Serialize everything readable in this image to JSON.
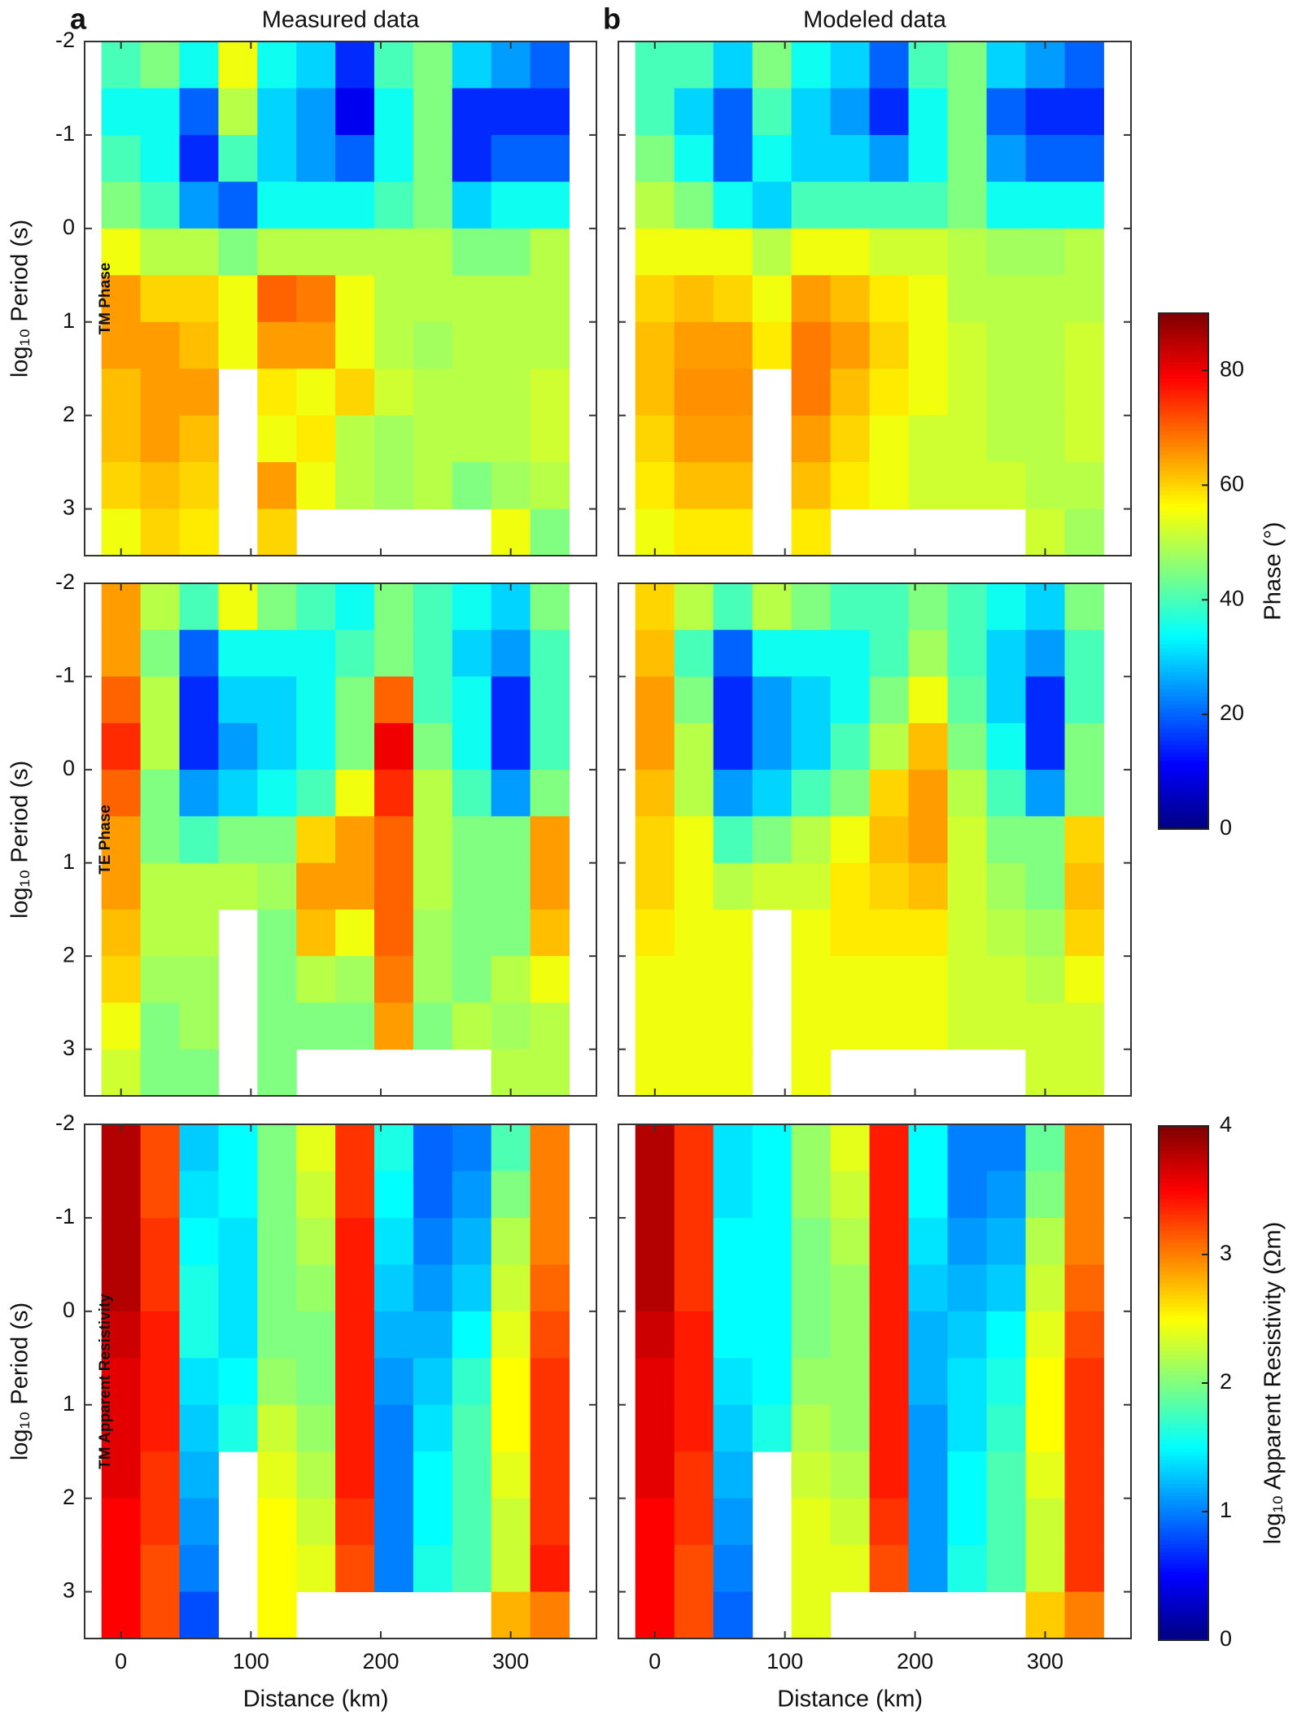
{
  "chart_data": [
    {
      "type": "heatmap",
      "panel_label": "a",
      "title": "Measured data",
      "row_label": "TM Phase",
      "ylabel": "log₁₀ Period (s)",
      "x": [
        0,
        30,
        60,
        90,
        120,
        150,
        180,
        210,
        240,
        270,
        300,
        330
      ],
      "y": [
        -1.75,
        -1.25,
        -0.75,
        -0.25,
        0.25,
        0.75,
        1.25,
        1.75,
        2.25,
        2.75,
        3.25
      ],
      "z": [
        [
          40,
          45,
          35,
          55,
          35,
          30,
          15,
          40,
          45,
          30,
          25,
          20
        ],
        [
          35,
          35,
          20,
          50,
          30,
          25,
          10,
          35,
          45,
          15,
          15,
          15
        ],
        [
          40,
          35,
          15,
          40,
          30,
          25,
          20,
          35,
          45,
          15,
          20,
          20
        ],
        [
          45,
          40,
          25,
          20,
          35,
          35,
          35,
          40,
          45,
          30,
          35,
          35
        ],
        [
          55,
          50,
          50,
          45,
          50,
          50,
          50,
          50,
          50,
          45,
          45,
          50
        ],
        [
          65,
          60,
          60,
          55,
          70,
          68,
          55,
          50,
          50,
          50,
          50,
          50
        ],
        [
          65,
          65,
          62,
          55,
          65,
          65,
          55,
          50,
          48,
          50,
          50,
          50
        ],
        [
          62,
          65,
          65,
          null,
          58,
          55,
          60,
          52,
          50,
          50,
          50,
          52
        ],
        [
          62,
          65,
          62,
          null,
          55,
          58,
          50,
          48,
          50,
          50,
          50,
          52
        ],
        [
          60,
          62,
          60,
          null,
          65,
          55,
          50,
          48,
          50,
          45,
          48,
          50
        ],
        [
          55,
          60,
          58,
          null,
          60,
          null,
          null,
          null,
          null,
          null,
          55,
          45
        ]
      ],
      "xlim": [
        -28,
        366
      ],
      "ylim": [
        -2,
        3.5
      ],
      "xticks": [
        0,
        100,
        200,
        300
      ],
      "yticks": [
        -2,
        -1,
        0,
        1,
        2,
        3
      ]
    },
    {
      "type": "heatmap",
      "panel_label": "b",
      "title": "Modeled data",
      "x": [
        0,
        30,
        60,
        90,
        120,
        150,
        180,
        210,
        240,
        270,
        300,
        330
      ],
      "y": [
        -1.75,
        -1.25,
        -0.75,
        -0.25,
        0.25,
        0.75,
        1.25,
        1.75,
        2.25,
        2.75,
        3.25
      ],
      "z": [
        [
          40,
          40,
          30,
          45,
          35,
          30,
          20,
          40,
          45,
          30,
          25,
          20
        ],
        [
          40,
          30,
          20,
          40,
          30,
          25,
          15,
          35,
          45,
          20,
          15,
          15
        ],
        [
          45,
          35,
          20,
          35,
          30,
          30,
          25,
          35,
          45,
          25,
          20,
          20
        ],
        [
          50,
          45,
          35,
          30,
          40,
          40,
          40,
          40,
          45,
          35,
          35,
          35
        ],
        [
          55,
          55,
          55,
          50,
          55,
          55,
          52,
          52,
          50,
          48,
          48,
          50
        ],
        [
          60,
          62,
          60,
          55,
          65,
          62,
          58,
          55,
          50,
          50,
          50,
          50
        ],
        [
          62,
          65,
          65,
          58,
          68,
          65,
          60,
          55,
          52,
          50,
          50,
          52
        ],
        [
          62,
          66,
          66,
          null,
          68,
          62,
          58,
          55,
          52,
          50,
          50,
          52
        ],
        [
          60,
          65,
          65,
          null,
          65,
          60,
          55,
          52,
          52,
          50,
          50,
          52
        ],
        [
          58,
          62,
          62,
          null,
          62,
          58,
          55,
          52,
          52,
          52,
          50,
          50
        ],
        [
          55,
          58,
          58,
          null,
          58,
          null,
          null,
          null,
          null,
          null,
          52,
          48
        ]
      ],
      "xlim": [
        -28,
        366
      ],
      "ylim": [
        -2,
        3.5
      ],
      "xticks": [
        0,
        100,
        200,
        300
      ],
      "yticks": [
        -2,
        -1,
        0,
        1,
        2,
        3
      ]
    },
    {
      "type": "heatmap",
      "row_label": "TE Phase",
      "ylabel": "log₁₀ Period (s)",
      "x": [
        0,
        30,
        60,
        90,
        120,
        150,
        180,
        210,
        240,
        270,
        300,
        330
      ],
      "y": [
        -1.75,
        -1.25,
        -0.75,
        -0.25,
        0.25,
        0.75,
        1.25,
        1.75,
        2.25,
        2.75,
        3.25
      ],
      "z": [
        [
          65,
          50,
          40,
          55,
          45,
          40,
          35,
          45,
          40,
          35,
          30,
          45
        ],
        [
          65,
          45,
          20,
          35,
          35,
          35,
          40,
          45,
          40,
          30,
          25,
          40
        ],
        [
          70,
          50,
          15,
          30,
          30,
          35,
          45,
          70,
          40,
          35,
          15,
          40
        ],
        [
          75,
          50,
          15,
          25,
          30,
          35,
          45,
          80,
          45,
          35,
          15,
          40
        ],
        [
          70,
          45,
          25,
          30,
          35,
          40,
          55,
          75,
          50,
          40,
          25,
          45
        ],
        [
          65,
          45,
          40,
          45,
          45,
          60,
          65,
          70,
          50,
          45,
          45,
          65
        ],
        [
          65,
          50,
          50,
          50,
          48,
          65,
          65,
          70,
          50,
          45,
          45,
          65
        ],
        [
          62,
          50,
          50,
          null,
          45,
          62,
          55,
          70,
          48,
          45,
          45,
          62
        ],
        [
          60,
          48,
          48,
          null,
          45,
          50,
          48,
          68,
          48,
          45,
          50,
          55
        ],
        [
          55,
          45,
          48,
          null,
          45,
          45,
          45,
          65,
          45,
          50,
          48,
          50
        ],
        [
          52,
          45,
          45,
          null,
          45,
          null,
          null,
          null,
          null,
          null,
          50,
          50
        ]
      ],
      "xlim": [
        -28,
        366
      ],
      "ylim": [
        -2,
        3.5
      ],
      "xticks": [
        0,
        100,
        200,
        300
      ],
      "yticks": [
        -2,
        -1,
        0,
        1,
        2,
        3
      ]
    },
    {
      "type": "heatmap",
      "x": [
        0,
        30,
        60,
        90,
        120,
        150,
        180,
        210,
        240,
        270,
        300,
        330
      ],
      "y": [
        -1.75,
        -1.25,
        -0.75,
        -0.25,
        0.25,
        0.75,
        1.25,
        1.75,
        2.25,
        2.75,
        3.25
      ],
      "z": [
        [
          60,
          50,
          40,
          50,
          45,
          40,
          40,
          45,
          40,
          35,
          30,
          45
        ],
        [
          62,
          40,
          20,
          35,
          35,
          35,
          40,
          48,
          40,
          30,
          25,
          40
        ],
        [
          65,
          45,
          15,
          25,
          30,
          35,
          45,
          55,
          42,
          30,
          15,
          40
        ],
        [
          65,
          50,
          15,
          25,
          30,
          40,
          50,
          62,
          45,
          35,
          15,
          45
        ],
        [
          62,
          50,
          25,
          30,
          40,
          45,
          60,
          65,
          50,
          40,
          25,
          45
        ],
        [
          60,
          55,
          40,
          45,
          50,
          55,
          62,
          65,
          52,
          45,
          45,
          60
        ],
        [
          60,
          55,
          50,
          52,
          52,
          58,
          60,
          62,
          52,
          48,
          45,
          62
        ],
        [
          58,
          55,
          55,
          null,
          55,
          58,
          58,
          58,
          52,
          50,
          48,
          60
        ],
        [
          55,
          55,
          55,
          null,
          55,
          55,
          55,
          55,
          52,
          52,
          50,
          55
        ],
        [
          55,
          55,
          55,
          null,
          55,
          55,
          55,
          55,
          52,
          52,
          52,
          52
        ],
        [
          55,
          55,
          55,
          null,
          55,
          null,
          null,
          null,
          null,
          null,
          52,
          52
        ]
      ],
      "xlim": [
        -28,
        366
      ],
      "ylim": [
        -2,
        3.5
      ],
      "xticks": [
        0,
        100,
        200,
        300
      ],
      "yticks": [
        -2,
        -1,
        0,
        1,
        2,
        3
      ]
    },
    {
      "type": "heatmap",
      "row_label": "TM Apparent Resistivity",
      "ylabel": "log₁₀ Period (s)",
      "xlabel": "Distance (km)",
      "x": [
        0,
        30,
        60,
        90,
        120,
        150,
        180,
        210,
        240,
        270,
        300,
        330
      ],
      "y": [
        -1.75,
        -1.25,
        -0.75,
        -0.25,
        0.25,
        0.75,
        1.25,
        1.75,
        2.25,
        2.75,
        3.25
      ],
      "z": [
        [
          3.8,
          3.2,
          1.3,
          1.5,
          2.0,
          2.4,
          3.3,
          1.6,
          0.9,
          1.0,
          1.8,
          3.0
        ],
        [
          3.8,
          3.2,
          1.4,
          1.5,
          2.0,
          2.3,
          3.3,
          1.5,
          0.9,
          1.1,
          2.0,
          3.0
        ],
        [
          3.8,
          3.3,
          1.5,
          1.4,
          2.0,
          2.2,
          3.4,
          1.4,
          1.0,
          1.2,
          2.2,
          3.0
        ],
        [
          3.8,
          3.3,
          1.6,
          1.4,
          2.0,
          2.1,
          3.4,
          1.3,
          1.1,
          1.3,
          2.3,
          3.1
        ],
        [
          3.7,
          3.4,
          1.6,
          1.4,
          2.0,
          2.0,
          3.4,
          1.2,
          1.2,
          1.5,
          2.4,
          3.2
        ],
        [
          3.6,
          3.4,
          1.4,
          1.5,
          2.1,
          2.0,
          3.4,
          1.1,
          1.3,
          1.7,
          2.5,
          3.3
        ],
        [
          3.6,
          3.4,
          1.3,
          1.6,
          2.3,
          2.1,
          3.4,
          1.0,
          1.4,
          1.8,
          2.5,
          3.3
        ],
        [
          3.6,
          3.3,
          1.2,
          null,
          2.4,
          2.2,
          3.4,
          1.0,
          1.5,
          1.8,
          2.4,
          3.3
        ],
        [
          3.5,
          3.3,
          1.1,
          null,
          2.5,
          2.3,
          3.3,
          1.0,
          1.5,
          1.8,
          2.3,
          3.3
        ],
        [
          3.5,
          3.2,
          1.0,
          null,
          2.5,
          2.4,
          3.2,
          1.0,
          1.6,
          1.8,
          2.3,
          3.4
        ],
        [
          3.5,
          3.2,
          0.8,
          null,
          2.5,
          null,
          null,
          null,
          null,
          null,
          2.8,
          3.0
        ]
      ],
      "xlim": [
        -28,
        366
      ],
      "ylim": [
        -2,
        3.5
      ],
      "xticks": [
        0,
        100,
        200,
        300
      ],
      "yticks": [
        -2,
        -1,
        0,
        1,
        2,
        3
      ]
    },
    {
      "type": "heatmap",
      "xlabel": "Distance (km)",
      "x": [
        0,
        30,
        60,
        90,
        120,
        150,
        180,
        210,
        240,
        270,
        300,
        330
      ],
      "y": [
        -1.75,
        -1.25,
        -0.75,
        -0.25,
        0.25,
        0.75,
        1.25,
        1.75,
        2.25,
        2.75,
        3.25
      ],
      "z": [
        [
          3.8,
          3.3,
          1.4,
          1.5,
          2.1,
          2.4,
          3.4,
          1.5,
          1.0,
          1.0,
          1.9,
          3.0
        ],
        [
          3.8,
          3.3,
          1.4,
          1.5,
          2.1,
          2.3,
          3.4,
          1.5,
          1.0,
          1.1,
          2.0,
          3.0
        ],
        [
          3.8,
          3.3,
          1.5,
          1.5,
          2.0,
          2.2,
          3.4,
          1.4,
          1.1,
          1.2,
          2.2,
          3.0
        ],
        [
          3.8,
          3.3,
          1.5,
          1.5,
          2.0,
          2.1,
          3.4,
          1.3,
          1.2,
          1.3,
          2.3,
          3.1
        ],
        [
          3.7,
          3.4,
          1.5,
          1.5,
          2.0,
          2.1,
          3.4,
          1.2,
          1.3,
          1.5,
          2.4,
          3.2
        ],
        [
          3.6,
          3.4,
          1.4,
          1.5,
          2.1,
          2.1,
          3.4,
          1.2,
          1.4,
          1.6,
          2.5,
          3.3
        ],
        [
          3.6,
          3.4,
          1.3,
          1.6,
          2.2,
          2.1,
          3.4,
          1.1,
          1.4,
          1.7,
          2.5,
          3.3
        ],
        [
          3.6,
          3.3,
          1.2,
          null,
          2.3,
          2.2,
          3.4,
          1.1,
          1.5,
          1.8,
          2.4,
          3.3
        ],
        [
          3.5,
          3.3,
          1.1,
          null,
          2.4,
          2.3,
          3.3,
          1.1,
          1.5,
          1.8,
          2.3,
          3.3
        ],
        [
          3.5,
          3.2,
          1.0,
          null,
          2.4,
          2.4,
          3.2,
          1.1,
          1.6,
          1.8,
          2.3,
          3.3
        ],
        [
          3.5,
          3.2,
          0.9,
          null,
          2.4,
          null,
          null,
          null,
          null,
          null,
          2.7,
          3.0
        ]
      ],
      "xlim": [
        -28,
        366
      ],
      "ylim": [
        -2,
        3.5
      ],
      "xticks": [
        0,
        100,
        200,
        300
      ],
      "yticks": [
        -2,
        -1,
        0,
        1,
        2,
        3
      ]
    }
  ],
  "colorbars": [
    {
      "label": "Phase (°)",
      "clim": [
        0,
        90
      ],
      "ticks": [
        0,
        20,
        40,
        60,
        80
      ],
      "colormap": "jet"
    },
    {
      "label": "log₁₀ Apparent Resistivity (Ωm)",
      "clim": [
        0,
        4
      ],
      "ticks": [
        0,
        1,
        2,
        3,
        4
      ],
      "colormap": "jet"
    }
  ]
}
